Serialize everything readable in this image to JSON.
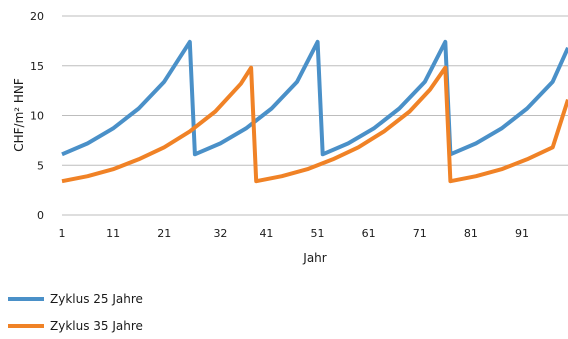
{
  "chart_data": {
    "type": "line",
    "xlabel": "Jahr",
    "ylabel": "CHF/m² HNF",
    "xlim": [
      1,
      100
    ],
    "ylim": [
      0,
      20
    ],
    "x_ticks": [
      1,
      11,
      21,
      32,
      41,
      51,
      61,
      71,
      81,
      91
    ],
    "y_ticks": [
      0,
      5,
      10,
      15,
      20
    ],
    "grid": "horizontal",
    "legend_position": "bottom-left",
    "series": [
      {
        "name": "Zyklus 25 Jahre",
        "color": "#4a90c8",
        "points": [
          [
            1,
            6.1
          ],
          [
            6,
            7.2
          ],
          [
            11,
            8.7
          ],
          [
            16,
            10.7
          ],
          [
            21,
            13.4
          ],
          [
            26,
            17.4
          ],
          [
            27,
            6.1
          ],
          [
            32,
            7.2
          ],
          [
            37,
            8.7
          ],
          [
            42,
            10.7
          ],
          [
            47,
            13.4
          ],
          [
            51,
            17.4
          ],
          [
            52,
            6.1
          ],
          [
            57,
            7.2
          ],
          [
            62,
            8.7
          ],
          [
            67,
            10.7
          ],
          [
            72,
            13.4
          ],
          [
            76,
            17.4
          ],
          [
            77,
            6.1
          ],
          [
            82,
            7.2
          ],
          [
            87,
            8.7
          ],
          [
            92,
            10.7
          ],
          [
            97,
            13.4
          ],
          [
            100,
            16.8
          ]
        ]
      },
      {
        "name": "Zyklus 35 Jahre",
        "color": "#f08226",
        "points": [
          [
            1,
            3.4
          ],
          [
            6,
            3.9
          ],
          [
            11,
            4.6
          ],
          [
            16,
            5.6
          ],
          [
            21,
            6.8
          ],
          [
            26,
            8.4
          ],
          [
            31,
            10.4
          ],
          [
            36,
            13.2
          ],
          [
            38,
            14.8
          ],
          [
            39,
            3.4
          ],
          [
            44,
            3.9
          ],
          [
            49,
            4.6
          ],
          [
            54,
            5.6
          ],
          [
            59,
            6.8
          ],
          [
            64,
            8.4
          ],
          [
            69,
            10.4
          ],
          [
            73,
            12.6
          ],
          [
            76,
            14.8
          ],
          [
            77,
            3.4
          ],
          [
            82,
            3.9
          ],
          [
            87,
            4.6
          ],
          [
            92,
            5.6
          ],
          [
            97,
            6.8
          ],
          [
            100,
            11.6
          ]
        ]
      }
    ]
  },
  "legend": {
    "series_1": "Zyklus 25 Jahre",
    "series_2": "Zyklus 35 Jahre"
  }
}
